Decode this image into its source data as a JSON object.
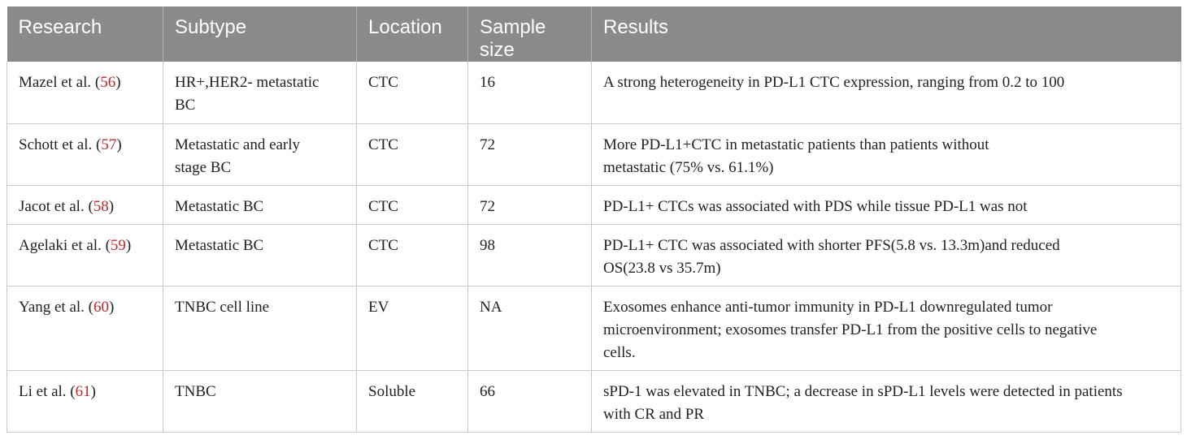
{
  "headers": {
    "research": "Research",
    "subtype": "Subtype",
    "location": "Location",
    "sample_size": "Sample size",
    "results": "Results"
  },
  "rows": [
    {
      "author": "Mazel et al. (",
      "ref": "56",
      "close": ")",
      "subtype": "HR+,HER2- metastatic BC",
      "location": "CTC",
      "sample": "16",
      "results": "A strong heterogeneity in PD-L1 CTC expression, ranging from 0.2 to 100"
    },
    {
      "author": "Schott et al. (",
      "ref": "57",
      "close": ")",
      "subtype": "Metastatic and early stage BC",
      "location": "CTC",
      "sample": "72",
      "results": "More PD-L1+CTC in metastatic patients than patients without metastatic (75% vs. 61.1%)"
    },
    {
      "author": "Jacot et al. (",
      "ref": "58",
      "close": ")",
      "subtype": "Metastatic BC",
      "location": "CTC",
      "sample": "72",
      "results": "PD-L1+ CTCs was associated with PDS while tissue PD-L1 was not"
    },
    {
      "author": "Agelaki et al. (",
      "ref": "59",
      "close": ")",
      "subtype": "Metastatic BC",
      "location": "CTC",
      "sample": "98",
      "results": "PD-L1+ CTC was associated with shorter PFS(5.8 vs. 13.3m)and reduced OS(23.8 vs 35.7m)"
    },
    {
      "author": "Yang et al. (",
      "ref": "60",
      "close": ")",
      "subtype": "TNBC cell line",
      "location": "EV",
      "sample": "NA",
      "results": "Exosomes enhance anti-tumor immunity in PD-L1 downregulated tumor microenvironment; exosomes transfer PD-L1 from the positive cells to negative cells."
    },
    {
      "author": "Li et al. (",
      "ref": "61",
      "close": ")",
      "subtype": "TNBC",
      "location": "Soluble",
      "sample": "66",
      "results": "sPD-1 was elevated in TNBC; a decrease in sPD-L1 levels were detected in patients with CR and PR"
    }
  ]
}
